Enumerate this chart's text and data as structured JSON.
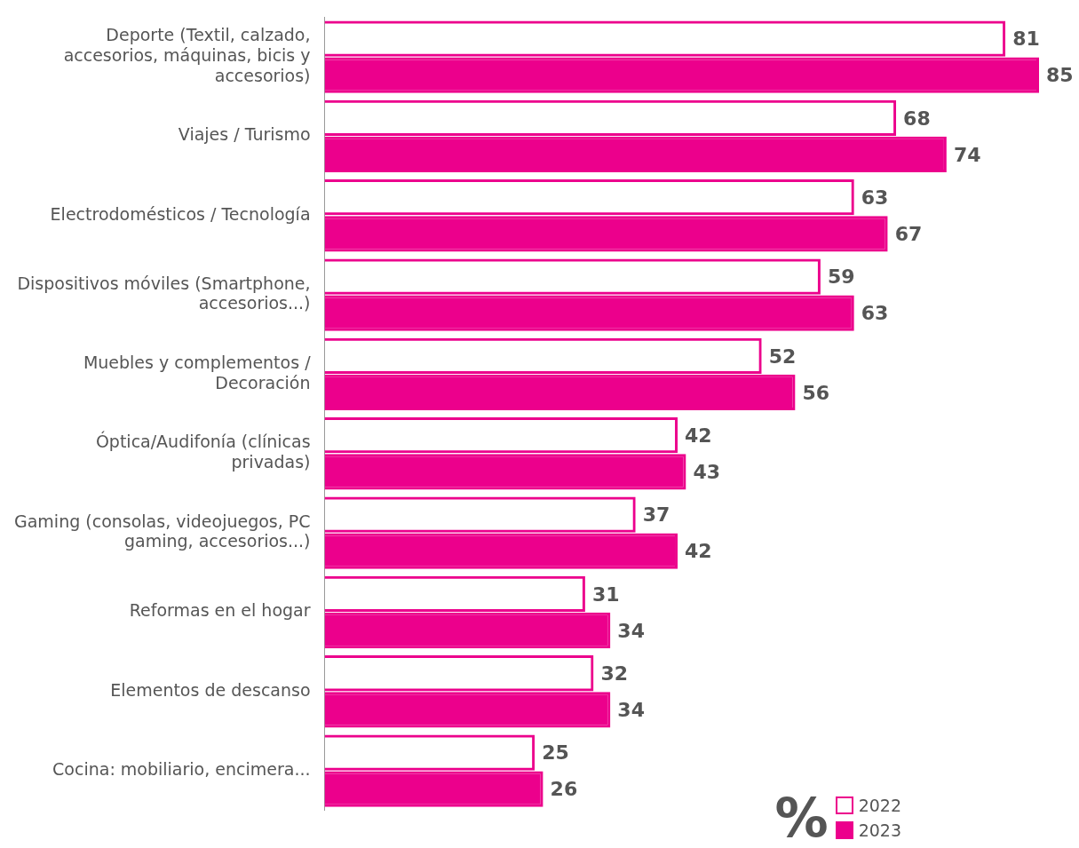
{
  "chart_data": {
    "type": "bar",
    "orientation": "horizontal",
    "categories": [
      "Deporte (Textil, calzado, accesorios, máquinas, bicis y accesorios)",
      "Viajes / Turismo",
      "Electrodomésticos / Tecnología",
      "Dispositivos móviles (Smartphone, accesorios...)",
      "Muebles y complementos / Decoración",
      "Óptica/Audifonía (clínicas privadas)",
      "Gaming (consolas, videojuegos, PC gaming, accesorios...)",
      "Reformas en el hogar",
      "Elementos de descanso",
      "Cocina: mobiliario, encimera..."
    ],
    "series": [
      {
        "name": "2022",
        "color": "#ec008c",
        "values": [
          81,
          68,
          63,
          59,
          52,
          42,
          37,
          31,
          32,
          25
        ]
      },
      {
        "name": "2023",
        "color": "#ec008c",
        "values": [
          85,
          74,
          67,
          63,
          56,
          43,
          42,
          34,
          34,
          26
        ]
      }
    ],
    "data_labels": true,
    "legend": "bottom right",
    "legend_title": "%"
  }
}
